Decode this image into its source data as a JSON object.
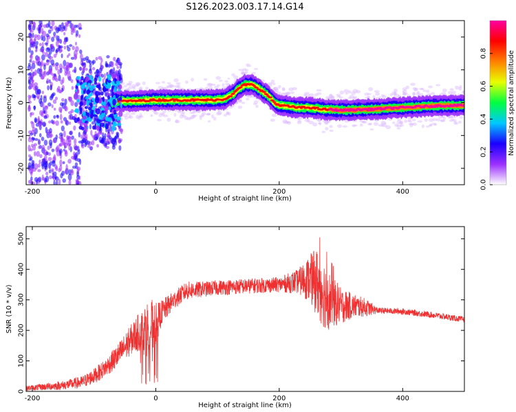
{
  "title": "S126.2023.003.17.14.G14",
  "chart_data": [
    {
      "type": "heatmap",
      "xlabel": "Height of straight line (km)",
      "ylabel": "Frequency (Hz)",
      "xlim": [
        -210,
        500
      ],
      "ylim": [
        -25,
        25
      ],
      "xticks": [
        -200,
        0,
        200,
        400
      ],
      "yticks": [
        -20,
        -10,
        0,
        10,
        20
      ],
      "ridge": {
        "x": [
          -70,
          -60,
          -50,
          -40,
          0,
          50,
          90,
          110,
          125,
          135,
          145,
          155,
          165,
          180,
          195,
          210,
          230,
          250,
          270,
          300,
          350,
          400,
          450,
          500
        ],
        "y": [
          0,
          0.5,
          0.5,
          0.5,
          0.8,
          0.8,
          0.8,
          1.0,
          2.5,
          4.5,
          5.5,
          5.5,
          4.5,
          2.5,
          -0.5,
          -1.0,
          -1.5,
          -1.5,
          -2.0,
          -2.3,
          -2.0,
          -1.5,
          -1.0,
          -0.8
        ]
      },
      "colorbar": {
        "label": "Normalized spectral amplitude",
        "ticks": [
          "0.0",
          "0.2",
          "0.4",
          "0.6",
          "0.8"
        ],
        "range": [
          0,
          1
        ],
        "colors": [
          "#ffffff",
          "#9b30ff",
          "#1a00ff",
          "#00c8ff",
          "#00ff40",
          "#e8ff00",
          "#ff8000",
          "#ff0000",
          "#ff00a0"
        ]
      },
      "grid": false
    },
    {
      "type": "line",
      "xlabel": "Height of straight line (km)",
      "ylabel": "SNR (10 * v/v)",
      "xlim": [
        -210,
        500
      ],
      "ylim": [
        0,
        540
      ],
      "xticks": [
        -200,
        0,
        200,
        400
      ],
      "yticks": [
        0,
        100,
        200,
        300,
        400,
        500
      ],
      "series": [
        {
          "color": "#f03030",
          "envelope_x": [
            -210,
            -150,
            -120,
            -100,
            -80,
            -60,
            -40,
            -30,
            -20,
            -10,
            0,
            10,
            30,
            50,
            80,
            100,
            150,
            200,
            230,
            250,
            260,
            270,
            280,
            290,
            300,
            320,
            340,
            360,
            400,
            450,
            500
          ],
          "envelope_mean": [
            10,
            20,
            30,
            50,
            80,
            120,
            170,
            190,
            200,
            210,
            220,
            260,
            300,
            330,
            335,
            340,
            345,
            350,
            360,
            370,
            360,
            330,
            300,
            290,
            280,
            280,
            275,
            265,
            262,
            250,
            235
          ],
          "envelope_amp": [
            8,
            15,
            20,
            25,
            30,
            40,
            50,
            60,
            80,
            100,
            70,
            40,
            30,
            30,
            25,
            25,
            25,
            25,
            40,
            80,
            110,
            120,
            100,
            80,
            60,
            40,
            30,
            10,
            10,
            10,
            10
          ],
          "max": 535
        }
      ],
      "grid": false
    }
  ]
}
